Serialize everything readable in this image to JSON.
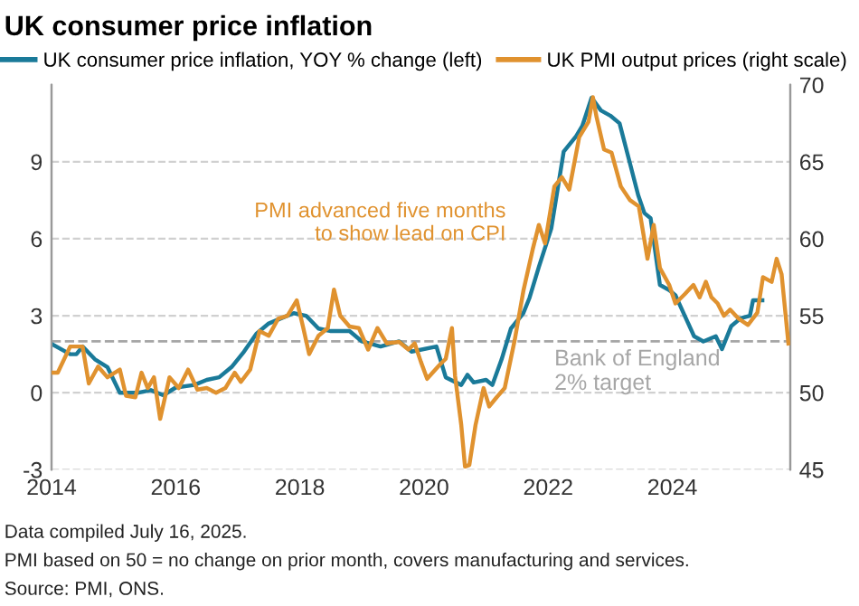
{
  "chart_data": {
    "type": "line",
    "title": "UK consumer price inflation",
    "xlim": [
      2014,
      2025.9
    ],
    "xticks": [
      2014,
      2016,
      2018,
      2020,
      2022,
      2024
    ],
    "ylim": [
      -3,
      12
    ],
    "yticks": [
      -3,
      0,
      3,
      6,
      9
    ],
    "y2lim": [
      45,
      70
    ],
    "y2ticks": [
      45,
      50,
      55,
      60,
      65,
      70
    ],
    "grid": "y",
    "legend": "top",
    "line_style": "solid",
    "marker": "none",
    "series": [
      {
        "name": "UK consumer price inflation, YOY % change (left)",
        "color": "#1a7a99",
        "x": [
          2014.0,
          2014.3,
          2014.4,
          2014.5,
          2014.7,
          2014.9,
          2015.1,
          2015.4,
          2015.6,
          2015.8,
          2016.0,
          2016.3,
          2016.5,
          2016.7,
          2016.9,
          2017.1,
          2017.3,
          2017.5,
          2017.7,
          2017.9,
          2018.1,
          2018.3,
          2018.5,
          2018.8,
          2019.0,
          2019.3,
          2019.6,
          2019.8,
          2020.2,
          2020.35,
          2020.6,
          2020.7,
          2020.8,
          2021.0,
          2021.1,
          2021.25,
          2021.4,
          2021.6,
          2021.7,
          2021.85,
          2022.05,
          2022.25,
          2022.45,
          2022.55,
          2022.7,
          2022.85,
          2023.0,
          2023.15,
          2023.3,
          2023.45,
          2023.55,
          2023.65,
          2023.8,
          2023.95,
          2024.05,
          2024.2,
          2024.35,
          2024.5,
          2024.7,
          2024.8,
          2024.95,
          2025.1,
          2025.25,
          2025.3,
          2025.45
        ],
        "values": [
          1.9,
          1.5,
          1.5,
          1.8,
          1.3,
          1.0,
          0.0,
          0.0,
          0.1,
          -0.1,
          0.2,
          0.3,
          0.5,
          0.6,
          1.0,
          1.6,
          2.3,
          2.7,
          2.9,
          3.1,
          3.0,
          2.5,
          2.4,
          2.4,
          2.0,
          1.8,
          2.0,
          1.6,
          1.8,
          0.6,
          0.3,
          0.7,
          0.4,
          0.5,
          0.3,
          1.3,
          2.5,
          3.1,
          3.7,
          4.9,
          6.4,
          9.4,
          10.0,
          10.4,
          11.5,
          11.0,
          10.8,
          10.5,
          9.1,
          7.7,
          7.0,
          6.8,
          4.2,
          4.0,
          3.8,
          3.0,
          2.2,
          2.0,
          2.2,
          1.7,
          2.6,
          2.9,
          3.0,
          3.6,
          3.6
        ]
      },
      {
        "name": "UK PMI output prices (right scale)",
        "color": "#e0922f",
        "axis": "y2",
        "x": [
          2014.0,
          2014.1,
          2014.3,
          2014.4,
          2014.5,
          2014.6,
          2014.75,
          2014.9,
          2015.1,
          2015.2,
          2015.35,
          2015.45,
          2015.55,
          2015.65,
          2015.75,
          2015.9,
          2016.05,
          2016.2,
          2016.35,
          2016.5,
          2016.65,
          2016.8,
          2016.95,
          2017.05,
          2017.2,
          2017.35,
          2017.5,
          2017.65,
          2017.8,
          2017.95,
          2018.05,
          2018.15,
          2018.3,
          2018.45,
          2018.55,
          2018.65,
          2018.8,
          2018.95,
          2019.1,
          2019.25,
          2019.4,
          2019.6,
          2019.75,
          2019.85,
          2019.95,
          2020.05,
          2020.25,
          2020.35,
          2020.45,
          2020.5,
          2020.6,
          2020.66,
          2020.73,
          2020.83,
          2020.96,
          2021.05,
          2021.17,
          2021.3,
          2021.46,
          2021.6,
          2021.75,
          2021.85,
          2021.95,
          2022.1,
          2022.22,
          2022.34,
          2022.5,
          2022.65,
          2022.72,
          2022.78,
          2022.9,
          2023.02,
          2023.17,
          2023.32,
          2023.46,
          2023.6,
          2023.7,
          2023.8,
          2023.95,
          2024.05,
          2024.2,
          2024.34,
          2024.44,
          2024.54,
          2024.63,
          2024.73,
          2024.83,
          2024.93,
          2025.07,
          2025.22,
          2025.37,
          2025.46,
          2025.6,
          2025.68,
          2025.76,
          2025.87
        ],
        "values": [
          51.3,
          51.3,
          53.0,
          53.0,
          53.0,
          50.6,
          51.7,
          51.0,
          51.5,
          49.8,
          49.7,
          51.3,
          50.3,
          51.0,
          48.3,
          51.0,
          50.3,
          51.5,
          50.2,
          50.3,
          50.0,
          50.3,
          51.3,
          50.7,
          51.5,
          54.0,
          53.7,
          54.8,
          55.0,
          56.0,
          54.3,
          52.5,
          53.7,
          54.2,
          56.7,
          55.0,
          54.3,
          54.2,
          52.8,
          54.2,
          53.2,
          53.3,
          52.8,
          53.2,
          52.0,
          50.9,
          51.8,
          52.2,
          54.2,
          51.1,
          47.9,
          45.2,
          45.3,
          47.9,
          50.3,
          49.1,
          49.7,
          50.3,
          53.4,
          56.6,
          59.3,
          60.9,
          59.7,
          63.4,
          64.0,
          63.2,
          66.6,
          67.6,
          69.2,
          67.9,
          65.8,
          65.6,
          63.4,
          62.5,
          62.1,
          58.7,
          60.9,
          58.1,
          57.0,
          55.8,
          56.4,
          57.0,
          56.2,
          57.2,
          56.2,
          55.8,
          55.0,
          55.4,
          54.8,
          54.4,
          55.2,
          57.5,
          57.2,
          58.7,
          57.7,
          53.2
        ]
      }
    ],
    "ref_lines": [
      {
        "axis": "y",
        "value": 2,
        "label": "Bank of England\n2% target",
        "color": "#a6a6a6",
        "line_style": "dashed"
      }
    ],
    "annotations": [
      "PMI advanced five months\nto show lead on CPI",
      "Data compiled July 16, 2025.",
      "PMI based on 50 = no change on prior month, covers manufacturing and services.",
      "Source: PMI, ONS."
    ]
  }
}
